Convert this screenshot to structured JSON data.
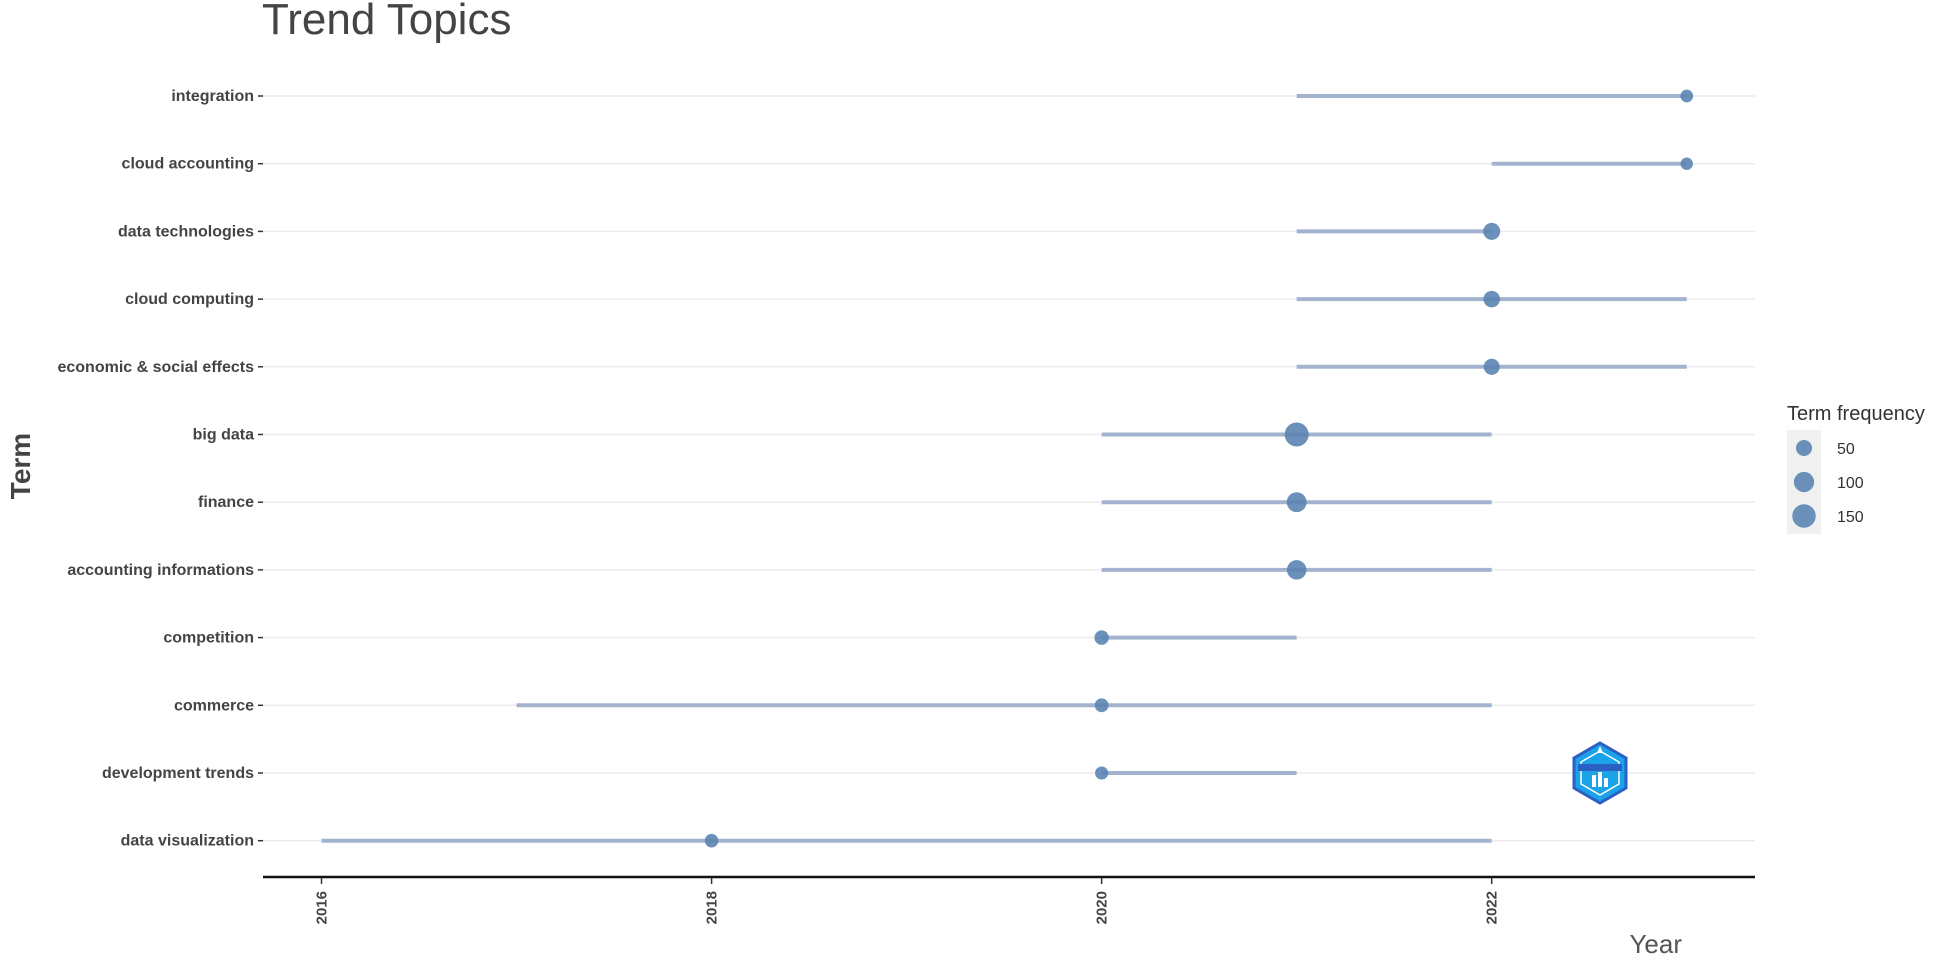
{
  "chart_data": {
    "type": "scatter",
    "title": "Trend Topics",
    "xlabel": "Year",
    "ylabel": "Term",
    "xlim": [
      2015.7,
      2023.35
    ],
    "x_ticks": [
      2016,
      2018,
      2020,
      2022
    ],
    "grid": "horizontal",
    "colors": {
      "point": "#5b84b1",
      "range": "#a3b3cf",
      "axis": "#111111",
      "grid": "#ebebeb",
      "legend_bg": "#f0f0f0"
    },
    "legend": {
      "title": "Term frequency",
      "placement": "right",
      "entries": [
        {
          "label": "50",
          "value": 50
        },
        {
          "label": "100",
          "value": 100
        },
        {
          "label": "150",
          "value": 150
        }
      ]
    },
    "terms": [
      {
        "term": "integration",
        "year_q1": 2021,
        "year_med": 2023,
        "year_q3": 2023,
        "freq": 22
      },
      {
        "term": "cloud accounting",
        "year_q1": 2022,
        "year_med": 2023,
        "year_q3": 2023,
        "freq": 20
      },
      {
        "term": "data technologies",
        "year_q1": 2021,
        "year_med": 2022,
        "year_q3": 2022,
        "freq": 60
      },
      {
        "term": "cloud computing",
        "year_q1": 2021,
        "year_med": 2022,
        "year_q3": 2023,
        "freq": 55
      },
      {
        "term": "economic & social effects",
        "year_q1": 2021,
        "year_med": 2022,
        "year_q3": 2023,
        "freq": 50
      },
      {
        "term": "big data",
        "year_q1": 2020,
        "year_med": 2021,
        "year_q3": 2022,
        "freq": 160
      },
      {
        "term": "finance",
        "year_q1": 2020,
        "year_med": 2021,
        "year_q3": 2022,
        "freq": 95
      },
      {
        "term": "accounting informations",
        "year_q1": 2020,
        "year_med": 2021,
        "year_q3": 2022,
        "freq": 90
      },
      {
        "term": "competition",
        "year_q1": 2020,
        "year_med": 2020,
        "year_q3": 2021,
        "freq": 35
      },
      {
        "term": "commerce",
        "year_q1": 2017,
        "year_med": 2020,
        "year_q3": 2022,
        "freq": 30
      },
      {
        "term": "development trends",
        "year_q1": 2020,
        "year_med": 2020,
        "year_q3": 2021,
        "freq": 25
      },
      {
        "term": "data visualization",
        "year_q1": 2016,
        "year_med": 2018,
        "year_q3": 2022,
        "freq": 28
      }
    ]
  }
}
